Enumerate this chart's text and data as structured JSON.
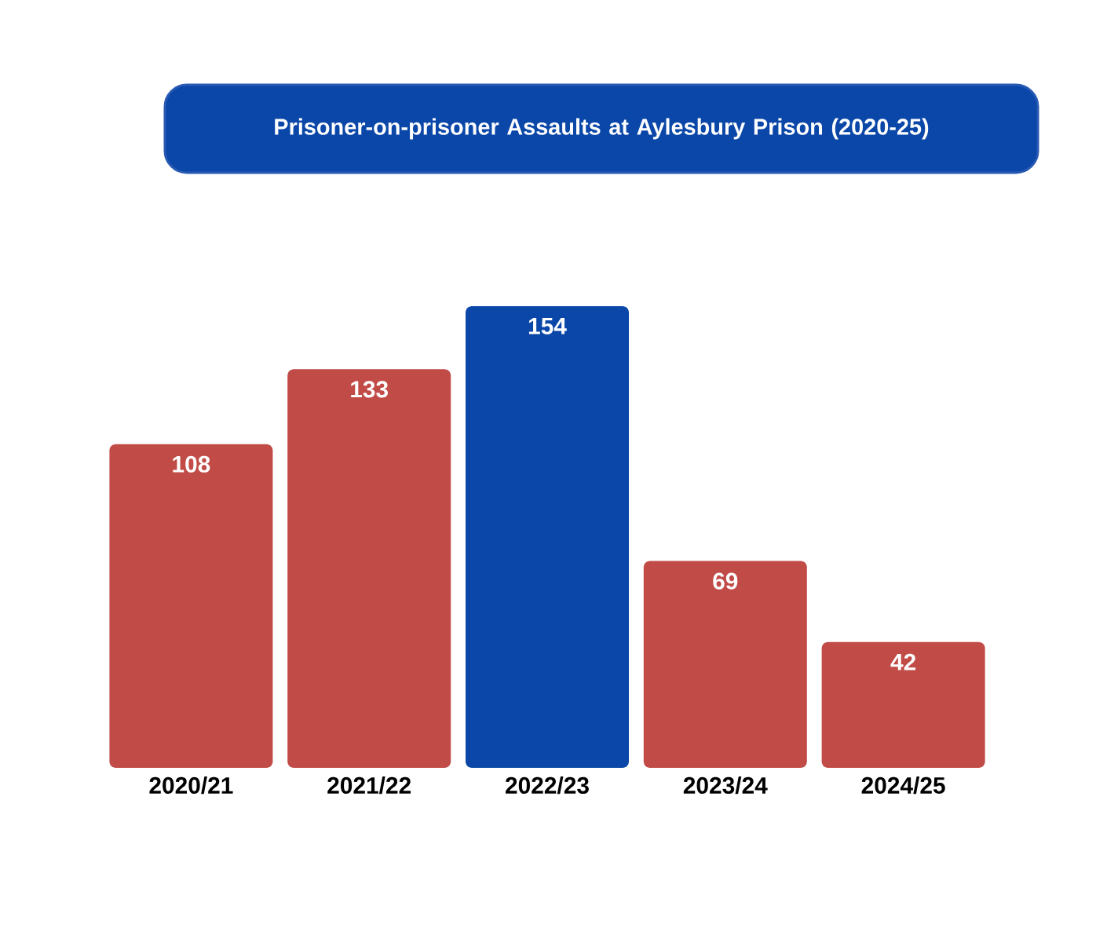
{
  "chart_data": {
    "type": "bar",
    "title": "Prisoner-on-prisoner Assaults at Aylesbury Prison (2020-25)",
    "categories": [
      "2020/21",
      "2021/22",
      "2022/23",
      "2023/24",
      "2024/25"
    ],
    "values": [
      108,
      133,
      154,
      69,
      42
    ],
    "colors": [
      "#c14b47",
      "#c14b47",
      "#0b47a8",
      "#c14b47",
      "#c14b47"
    ],
    "data_labels": true
  }
}
